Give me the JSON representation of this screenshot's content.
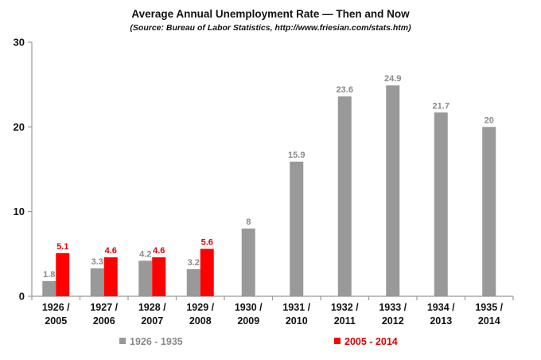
{
  "chart_data": {
    "type": "bar",
    "title": "Average Annual Unemployment Rate — Then and Now",
    "subtitle": "(Source: Bureau of Labor Statistics, http://www.friesian.com/stats.htm)",
    "categories": [
      [
        "1926 /",
        "2005"
      ],
      [
        "1927 /",
        "2006"
      ],
      [
        "1928 /",
        "2007"
      ],
      [
        "1929 /",
        "2008"
      ],
      [
        "1930 /",
        "2009"
      ],
      [
        "1931 /",
        "2010"
      ],
      [
        "1932 /",
        "2011"
      ],
      [
        "1933 /",
        "2012"
      ],
      [
        "1934 /",
        "2013"
      ],
      [
        "1935 /",
        "2014"
      ]
    ],
    "series": [
      {
        "name": "1926 - 1935",
        "color": "#999999",
        "label_color": "#8a8a8a",
        "values": [
          1.8,
          3.3,
          4.2,
          3.2,
          8,
          15.9,
          23.6,
          24.9,
          21.7,
          20
        ],
        "labels": [
          "1.8",
          "3.3",
          "4.2",
          "3.2",
          "8",
          "15.9",
          "23.6",
          "24.9",
          "21.7",
          "20"
        ]
      },
      {
        "name": "2005 - 2014",
        "color": "#ff0000",
        "label_color": "#e00000",
        "values": [
          5.1,
          4.6,
          4.6,
          5.6,
          null,
          null,
          null,
          null,
          null,
          null
        ],
        "labels": [
          "5.1",
          "4.6",
          "4.6",
          "5.6",
          null,
          null,
          null,
          null,
          null,
          null
        ]
      }
    ],
    "ylim": [
      0,
      30
    ],
    "yticks": [
      0,
      10,
      20,
      30
    ],
    "xlabel": "",
    "ylabel": "",
    "grid": false,
    "legend_position": "bottom"
  }
}
